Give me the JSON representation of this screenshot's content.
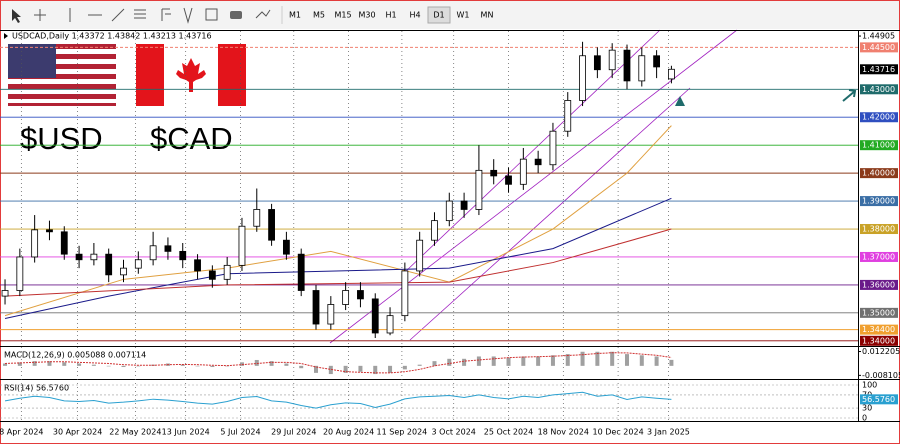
{
  "toolbar": {
    "timeframes": [
      "M1",
      "M5",
      "M15",
      "M30",
      "H1",
      "H4",
      "D1",
      "W1",
      "MN"
    ],
    "active": "D1"
  },
  "overlay": {
    "usd": "$USD",
    "cad": "$CAD"
  },
  "chart_data": [
    {
      "type": "candlestick",
      "title": "USDCAD,Daily 1.43372 1.43842 1.43213 1.43716",
      "color": "#000000",
      "open": [
        1.356,
        1.358,
        1.37,
        1.3797,
        1.379,
        1.371,
        1.369,
        1.371,
        1.3636,
        1.366,
        1.369,
        1.374,
        1.372,
        1.369,
        1.365,
        1.362,
        1.367,
        1.381,
        1.387,
        1.376,
        1.371,
        1.358,
        1.346,
        1.353,
        1.358,
        1.355,
        1.3428,
        1.349,
        1.365,
        1.376,
        1.383,
        1.39,
        1.387,
        1.401,
        1.399,
        1.396,
        1.405,
        1.403,
        1.415,
        1.426,
        1.442,
        1.437,
        1.444,
        1.433,
        1.442,
        1.43372
      ],
      "high": [
        1.362,
        1.373,
        1.385,
        1.383,
        1.381,
        1.374,
        1.375,
        1.373,
        1.369,
        1.372,
        1.379,
        1.377,
        1.375,
        1.371,
        1.367,
        1.37,
        1.384,
        1.3945,
        1.389,
        1.379,
        1.373,
        1.36,
        1.356,
        1.361,
        1.361,
        1.357,
        1.352,
        1.368,
        1.379,
        1.386,
        1.393,
        1.393,
        1.41,
        1.405,
        1.402,
        1.409,
        1.408,
        1.418,
        1.429,
        1.447,
        1.445,
        1.4465,
        1.446,
        1.445,
        1.444,
        1.43842
      ],
      "low": [
        1.353,
        1.356,
        1.368,
        1.376,
        1.369,
        1.366,
        1.367,
        1.361,
        1.361,
        1.364,
        1.367,
        1.369,
        1.366,
        1.362,
        1.359,
        1.36,
        1.365,
        1.379,
        1.374,
        1.369,
        1.356,
        1.344,
        1.344,
        1.351,
        1.352,
        1.341,
        1.342,
        1.347,
        1.363,
        1.374,
        1.381,
        1.384,
        1.385,
        1.396,
        1.393,
        1.394,
        1.4,
        1.401,
        1.413,
        1.424,
        1.434,
        1.434,
        1.43,
        1.431,
        1.434,
        1.43213
      ],
      "close": [
        1.358,
        1.37,
        1.3797,
        1.379,
        1.371,
        1.369,
        1.371,
        1.3636,
        1.366,
        1.369,
        1.374,
        1.372,
        1.369,
        1.365,
        1.362,
        1.367,
        1.381,
        1.387,
        1.376,
        1.371,
        1.358,
        1.346,
        1.353,
        1.358,
        1.355,
        1.3428,
        1.349,
        1.365,
        1.376,
        1.383,
        1.39,
        1.387,
        1.401,
        1.399,
        1.396,
        1.405,
        1.403,
        1.415,
        1.426,
        1.442,
        1.437,
        1.444,
        1.433,
        1.442,
        1.438,
        1.43716
      ],
      "xlim": [
        -0.34,
        57.6
      ],
      "xticks": [
        {
          "value": 1.1,
          "label": "8 Apr 2024"
        },
        {
          "value": 4.9,
          "label": "30 Apr 2024"
        },
        {
          "value": 8.8,
          "label": "22 May 2024"
        },
        {
          "value": 12.2,
          "label": "13 Jun 2024"
        },
        {
          "value": 15.9,
          "label": "5 Jul 2024"
        },
        {
          "value": 19.5,
          "label": "29 Jul 2024"
        },
        {
          "value": 23.2,
          "label": "20 Aug 2024"
        },
        {
          "value": 26.8,
          "label": "11 Sep 2024"
        },
        {
          "value": 30.3,
          "label": "3 Oct 2024"
        },
        {
          "value": 34.0,
          "label": "25 Oct 2024"
        },
        {
          "value": 37.7,
          "label": "18 Nov 2024"
        },
        {
          "value": 41.4,
          "label": "10 Dec 2024"
        },
        {
          "value": 44.8,
          "label": "3 Jan 2025"
        }
      ],
      "ylim": [
        1.3385,
        1.4505
      ],
      "yticks": [
        1.44905
      ],
      "levels": [
        {
          "value": 1.445,
          "label": "1.44500",
          "color": "#f08070",
          "dashed": true
        },
        {
          "value": 1.43,
          "label": "1.43000",
          "color": "#1f6b6b",
          "dashed": false
        },
        {
          "value": 1.42,
          "label": "1.42000",
          "color": "#2f4fc0",
          "dashed": false
        },
        {
          "value": 1.41,
          "label": "1.41000",
          "color": "#22aa22",
          "dashed": false
        },
        {
          "value": 1.4,
          "label": "1.40000",
          "color": "#8b3a1a",
          "dashed": false
        },
        {
          "value": 1.39,
          "label": "1.39000",
          "color": "#3a6ea5",
          "dashed": false
        },
        {
          "value": 1.38,
          "label": "1.38000",
          "color": "#c9a227",
          "dashed": false
        },
        {
          "value": 1.37,
          "label": "1.37000",
          "color": "#e040e0",
          "dashed": false
        },
        {
          "value": 1.36,
          "label": "1.36000",
          "color": "#6a1a8a",
          "dashed": false
        },
        {
          "value": 1.35,
          "label": "1.35000",
          "color": "#707070",
          "dashed": false
        },
        {
          "value": 1.344,
          "label": "1.34400",
          "color": "#f0a030",
          "dashed": false
        },
        {
          "value": 1.34,
          "label": "1.34000",
          "color": "#8b0000",
          "dashed": false
        }
      ],
      "moving_averages": [
        {
          "color": "#e0a040",
          "x": [
            0,
            8,
            15,
            22,
            30,
            37,
            42,
            45
          ],
          "values": [
            1.349,
            1.362,
            1.366,
            1.372,
            1.361,
            1.38,
            1.4,
            1.417
          ]
        },
        {
          "color": "#1a1a8a",
          "x": [
            0,
            7,
            15,
            30,
            37,
            45
          ],
          "values": [
            1.348,
            1.356,
            1.364,
            1.366,
            1.373,
            1.391
          ]
        },
        {
          "color": "#c03030",
          "x": [
            0,
            15,
            30,
            37,
            45
          ],
          "values": [
            1.356,
            1.36,
            1.361,
            1.368,
            1.38
          ]
        }
      ]
    },
    {
      "type": "macd",
      "title": "MACD(12,26,9) 0.005088 0.007114",
      "hist_color": "#a0a0a0",
      "signal_color": "#d03030",
      "histogram": [
        0.002,
        0.003,
        0.004,
        0.004,
        0.003,
        0.002,
        0.001,
        0.0,
        -0.001,
        0.0,
        0.001,
        0.002,
        0.001,
        0.0,
        -0.001,
        0.0,
        0.003,
        0.005,
        0.004,
        0.002,
        -0.002,
        -0.006,
        -0.007,
        -0.006,
        -0.005,
        -0.007,
        -0.006,
        -0.003,
        0.001,
        0.004,
        0.006,
        0.006,
        0.008,
        0.008,
        0.007,
        0.008,
        0.008,
        0.009,
        0.01,
        0.012,
        0.012,
        0.012,
        0.01,
        0.009,
        0.008,
        0.005088
      ],
      "signal": [
        0.002,
        0.0025,
        0.003,
        0.0035,
        0.0035,
        0.003,
        0.0025,
        0.002,
        0.001,
        0.0005,
        0.0005,
        0.001,
        0.0012,
        0.001,
        0.0005,
        0.0002,
        0.001,
        0.002,
        0.003,
        0.003,
        0.002,
        -0.001,
        -0.003,
        -0.005,
        -0.0055,
        -0.006,
        -0.006,
        -0.005,
        -0.003,
        0,
        0.002,
        0.004,
        0.005,
        0.006,
        0.007,
        0.0075,
        0.0078,
        0.0082,
        0.0088,
        0.0095,
        0.0105,
        0.0112,
        0.011,
        0.01,
        0.009,
        0.007114
      ],
      "ylim": [
        -0.0095,
        0.0135
      ],
      "yticks": [
        0.012205,
        -0.008105
      ]
    },
    {
      "type": "line",
      "title": "RSI(14) 56.5760",
      "color": "#2aa0d0",
      "values": [
        52,
        60,
        66,
        62,
        52,
        50,
        53,
        45,
        48,
        52,
        57,
        54,
        50,
        45,
        42,
        50,
        62,
        65,
        52,
        48,
        38,
        30,
        40,
        46,
        44,
        32,
        42,
        58,
        64,
        66,
        68,
        62,
        70,
        62,
        58,
        66,
        62,
        70,
        74,
        78,
        66,
        70,
        56,
        64,
        60,
        56.576
      ],
      "ylim": [
        0,
        100
      ],
      "yticks": [
        100,
        70,
        {
          "value": 56.576,
          "label": "56.5760"
        },
        30,
        0
      ],
      "grid": true
    }
  ]
}
